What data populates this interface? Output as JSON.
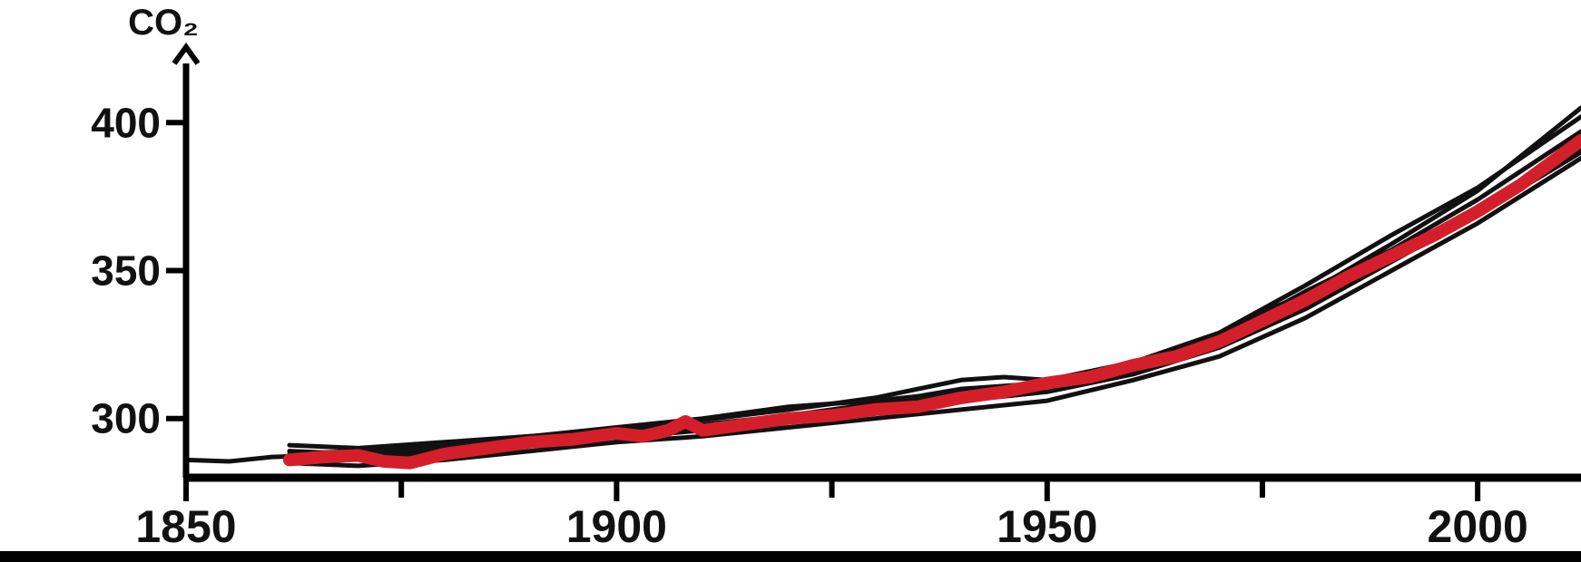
{
  "chart_data": {
    "type": "line",
    "ylabel": "CO₂",
    "xlabel": "",
    "title": "",
    "xlim": [
      1850,
      2012
    ],
    "ylim": [
      280,
      420
    ],
    "x_ticks": [
      1850,
      1900,
      1950,
      2000
    ],
    "x_tick_labels": [
      "1850",
      "1900",
      "1950",
      "2000"
    ],
    "y_ticks": [
      300,
      350,
      400
    ],
    "y_tick_labels": [
      "300",
      "350",
      "400"
    ],
    "grid": false,
    "colors": {
      "axis": "#000000",
      "ensemble": "#111111",
      "highlight": "#d41f2a"
    },
    "series": [
      {
        "role": "ensemble",
        "values": [
          [
            1850,
            286
          ],
          [
            1855,
            285.5
          ],
          [
            1860,
            287
          ],
          [
            1870,
            288
          ],
          [
            1880,
            290
          ],
          [
            1890,
            292
          ],
          [
            1900,
            294
          ],
          [
            1910,
            297
          ],
          [
            1920,
            300
          ],
          [
            1930,
            304
          ],
          [
            1940,
            308
          ],
          [
            1950,
            311
          ],
          [
            1960,
            318
          ],
          [
            1970,
            326
          ],
          [
            1980,
            340
          ],
          [
            1990,
            355
          ],
          [
            2000,
            370
          ],
          [
            2012,
            391
          ]
        ]
      },
      {
        "role": "ensemble",
        "values": [
          [
            1862,
            288
          ],
          [
            1870,
            289
          ],
          [
            1880,
            291.5
          ],
          [
            1890,
            294
          ],
          [
            1900,
            296
          ],
          [
            1910,
            299.5
          ],
          [
            1920,
            303
          ],
          [
            1930,
            307
          ],
          [
            1940,
            313
          ],
          [
            1945,
            314
          ],
          [
            1950,
            313
          ],
          [
            1960,
            319
          ],
          [
            1970,
            328
          ],
          [
            1975,
            336
          ],
          [
            1980,
            342
          ],
          [
            1990,
            359
          ],
          [
            2000,
            377
          ],
          [
            2012,
            405
          ]
        ]
      },
      {
        "role": "ensemble",
        "values": [
          [
            1862,
            291
          ],
          [
            1870,
            290
          ],
          [
            1880,
            292
          ],
          [
            1890,
            294
          ],
          [
            1900,
            297
          ],
          [
            1910,
            300
          ],
          [
            1920,
            304
          ],
          [
            1930,
            306
          ],
          [
            1940,
            309
          ],
          [
            1950,
            311
          ],
          [
            1960,
            319
          ],
          [
            1970,
            329
          ],
          [
            1980,
            345
          ],
          [
            1990,
            362
          ],
          [
            2000,
            378
          ],
          [
            2012,
            402
          ]
        ]
      },
      {
        "role": "ensemble",
        "values": [
          [
            1862,
            285
          ],
          [
            1870,
            284
          ],
          [
            1880,
            286
          ],
          [
            1890,
            289
          ],
          [
            1900,
            292
          ],
          [
            1910,
            294
          ],
          [
            1920,
            297
          ],
          [
            1930,
            300
          ],
          [
            1940,
            303
          ],
          [
            1950,
            306
          ],
          [
            1960,
            313
          ],
          [
            1970,
            321
          ],
          [
            1980,
            334
          ],
          [
            1990,
            350
          ],
          [
            2000,
            366
          ],
          [
            2012,
            388
          ]
        ]
      },
      {
        "role": "ensemble",
        "values": [
          [
            1862,
            287
          ],
          [
            1870,
            286.5
          ],
          [
            1880,
            289
          ],
          [
            1890,
            291
          ],
          [
            1900,
            293.5
          ],
          [
            1910,
            296
          ],
          [
            1920,
            299
          ],
          [
            1930,
            302
          ],
          [
            1940,
            306
          ],
          [
            1950,
            309
          ],
          [
            1960,
            315
          ],
          [
            1970,
            324
          ],
          [
            1980,
            337
          ],
          [
            1990,
            353
          ],
          [
            2000,
            369
          ],
          [
            2012,
            390
          ]
        ]
      },
      {
        "role": "ensemble",
        "values": [
          [
            1862,
            289
          ],
          [
            1870,
            288
          ],
          [
            1880,
            290
          ],
          [
            1890,
            292.5
          ],
          [
            1900,
            295
          ],
          [
            1910,
            298
          ],
          [
            1920,
            301
          ],
          [
            1930,
            305
          ],
          [
            1940,
            310
          ],
          [
            1950,
            312
          ],
          [
            1960,
            318
          ],
          [
            1970,
            327
          ],
          [
            1980,
            343
          ],
          [
            1990,
            357
          ],
          [
            2000,
            374
          ],
          [
            2012,
            397
          ]
        ]
      },
      {
        "role": "highlight",
        "values": [
          [
            1862,
            286
          ],
          [
            1866,
            287
          ],
          [
            1870,
            287.5
          ],
          [
            1873,
            285.5
          ],
          [
            1876,
            285
          ],
          [
            1880,
            288
          ],
          [
            1885,
            290
          ],
          [
            1890,
            292
          ],
          [
            1895,
            293
          ],
          [
            1900,
            295
          ],
          [
            1903,
            294
          ],
          [
            1906,
            296
          ],
          [
            1908,
            299
          ],
          [
            1910,
            296
          ],
          [
            1915,
            298
          ],
          [
            1920,
            300
          ],
          [
            1925,
            301
          ],
          [
            1930,
            303
          ],
          [
            1935,
            304
          ],
          [
            1940,
            307
          ],
          [
            1945,
            309
          ],
          [
            1950,
            312
          ],
          [
            1955,
            314
          ],
          [
            1960,
            318
          ],
          [
            1965,
            321
          ],
          [
            1970,
            326
          ],
          [
            1975,
            333
          ],
          [
            1980,
            340
          ],
          [
            1985,
            348
          ],
          [
            1990,
            355
          ],
          [
            1995,
            362
          ],
          [
            2000,
            370
          ],
          [
            2005,
            379
          ],
          [
            2012,
            394
          ]
        ]
      }
    ]
  }
}
